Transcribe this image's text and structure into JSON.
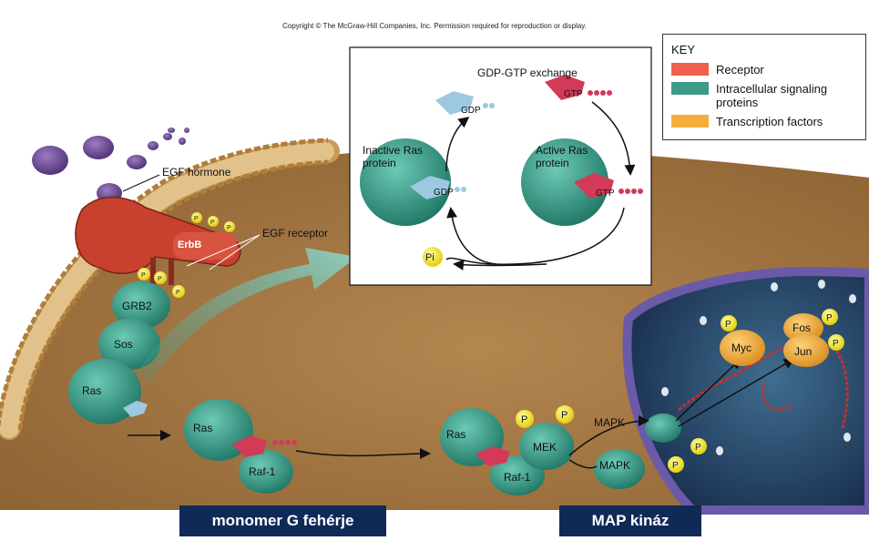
{
  "copyright": "Copyright © The McGraw-Hill Companies, Inc. Permission required for reproduction or display.",
  "key": {
    "title": "KEY",
    "items": [
      {
        "label": "Receptor",
        "color": "#f0604a"
      },
      {
        "label": "Intracellular signaling proteins",
        "color": "#3f9a8a"
      },
      {
        "label": "Transcription factors",
        "color": "#f5ae3c"
      }
    ]
  },
  "inset": {
    "gdp_gtp_exchange": "GDP-GTP exchange",
    "gdp": "GDP",
    "gtp": "GTP",
    "inactive_ras": "Inactive Ras protein",
    "active_ras": "Active Ras protein",
    "pi": "Pi"
  },
  "labels": {
    "egf_hormone": "EGF hormone",
    "egf_receptor": "EGF receptor",
    "erbb": "ErbB",
    "grb2": "GRB2",
    "sos": "Sos",
    "ras": "Ras",
    "raf1": "Raf-1",
    "mek": "MEK",
    "mapk": "MAPK",
    "myc": "Myc",
    "fos": "Fos",
    "jun": "Jun",
    "p": "P"
  },
  "banners": {
    "left": "monomer G fehérje",
    "right": "MAP kináz"
  },
  "colors": {
    "cytoplasm": "#a67a45",
    "membrane": "#c79a55",
    "receptor": "#c8402e",
    "signaling": "#2f8f7c",
    "transcription": "#f0a830",
    "phosphate": "#f2e21a",
    "nucleus": "#2e3a6b",
    "egf": "#6b4a8f",
    "banner": "#0f2a57"
  }
}
